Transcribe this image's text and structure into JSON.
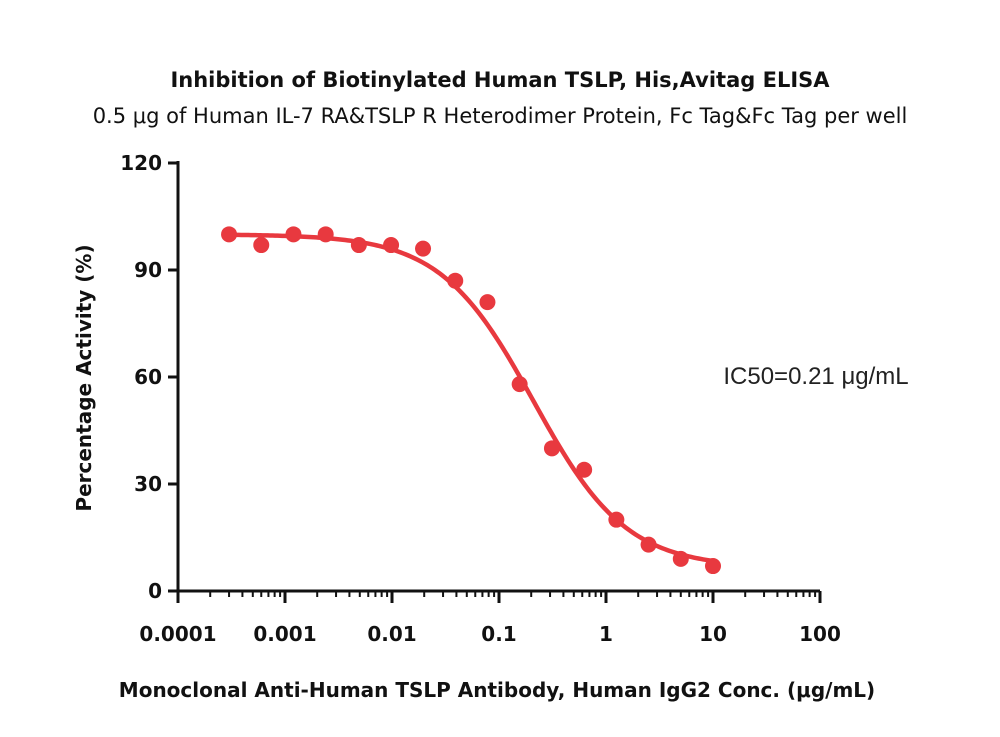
{
  "chart_data": {
    "type": "scatter",
    "title": "Inhibition of Biotinylated Human TSLP, His,Avitag ELISA",
    "subtitle": "0.5 μg of Human IL-7 RA&TSLP R Heterodimer Protein, Fc Tag&Fc Tag per well",
    "xlabel": "Monoclonal Anti-Human TSLP Antibody, Human IgG2 Conc. (μg/mL)",
    "ylabel": "Percentage Activity (%)",
    "xscale": "log",
    "xlim": [
      0.0001,
      100
    ],
    "ylim": [
      0,
      120
    ],
    "x_ticks": [
      {
        "value": 0.0001,
        "label": "0.0001"
      },
      {
        "value": 0.001,
        "label": "0.001"
      },
      {
        "value": 0.01,
        "label": "0.01"
      },
      {
        "value": 0.1,
        "label": "0.1"
      },
      {
        "value": 1,
        "label": "1"
      },
      {
        "value": 10,
        "label": "10"
      },
      {
        "value": 100,
        "label": "100"
      }
    ],
    "y_ticks": [
      {
        "value": 0,
        "label": "0"
      },
      {
        "value": 30,
        "label": "30"
      },
      {
        "value": 60,
        "label": "60"
      },
      {
        "value": 90,
        "label": "90"
      },
      {
        "value": 120,
        "label": "120"
      }
    ],
    "series": [
      {
        "color": "#e8393f",
        "points": [
          {
            "x": 0.0003,
            "y": 100
          },
          {
            "x": 0.0006,
            "y": 97
          },
          {
            "x": 0.0012,
            "y": 100
          },
          {
            "x": 0.0024,
            "y": 100
          },
          {
            "x": 0.0049,
            "y": 97
          },
          {
            "x": 0.0098,
            "y": 97
          },
          {
            "x": 0.0195,
            "y": 96
          },
          {
            "x": 0.039,
            "y": 87
          },
          {
            "x": 0.078,
            "y": 81
          },
          {
            "x": 0.156,
            "y": 58
          },
          {
            "x": 0.3125,
            "y": 40
          },
          {
            "x": 0.625,
            "y": 34
          },
          {
            "x": 1.25,
            "y": 20
          },
          {
            "x": 2.5,
            "y": 13
          },
          {
            "x": 5,
            "y": 9
          },
          {
            "x": 10,
            "y": 7
          }
        ],
        "fit": {
          "model": "4PL",
          "top": 100,
          "bottom": 6.5,
          "ic50": 0.21,
          "hill": 1.0,
          "x_range": [
            0.0003,
            10
          ]
        }
      }
    ],
    "annotations": [
      {
        "text": "IC50=0.21 μg/mL"
      }
    ],
    "grid": false,
    "legend": "none"
  }
}
